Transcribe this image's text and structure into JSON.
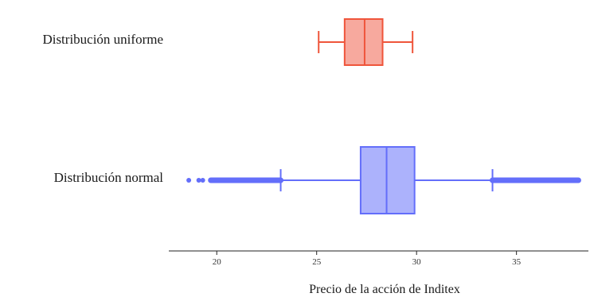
{
  "chart_data": {
    "type": "box",
    "orientation": "horizontal",
    "xlabel": "Precio de la acción de Inditex",
    "xlim": [
      17.6,
      38.6
    ],
    "xticks": [
      20,
      25,
      30,
      35
    ],
    "grid": false,
    "legend": "none",
    "series": [
      {
        "name": "Distribución uniforme",
        "color": "#ef553b",
        "fill": "#f7a99e",
        "min": 25.1,
        "q1": 26.4,
        "median": 27.4,
        "q3": 28.3,
        "max": 29.8,
        "outliers": []
      },
      {
        "name": "Distribución normal",
        "color": "#636efa",
        "fill": "#acb2fc",
        "min": 23.2,
        "q1": 27.2,
        "median": 28.5,
        "q3": 29.9,
        "max": 33.8,
        "outliers_low_range": [
          19.7,
          23.2
        ],
        "outliers_low_isolated": [
          18.6,
          19.1,
          19.3
        ],
        "outliers_high_range": [
          33.8,
          38.1
        ]
      }
    ]
  }
}
